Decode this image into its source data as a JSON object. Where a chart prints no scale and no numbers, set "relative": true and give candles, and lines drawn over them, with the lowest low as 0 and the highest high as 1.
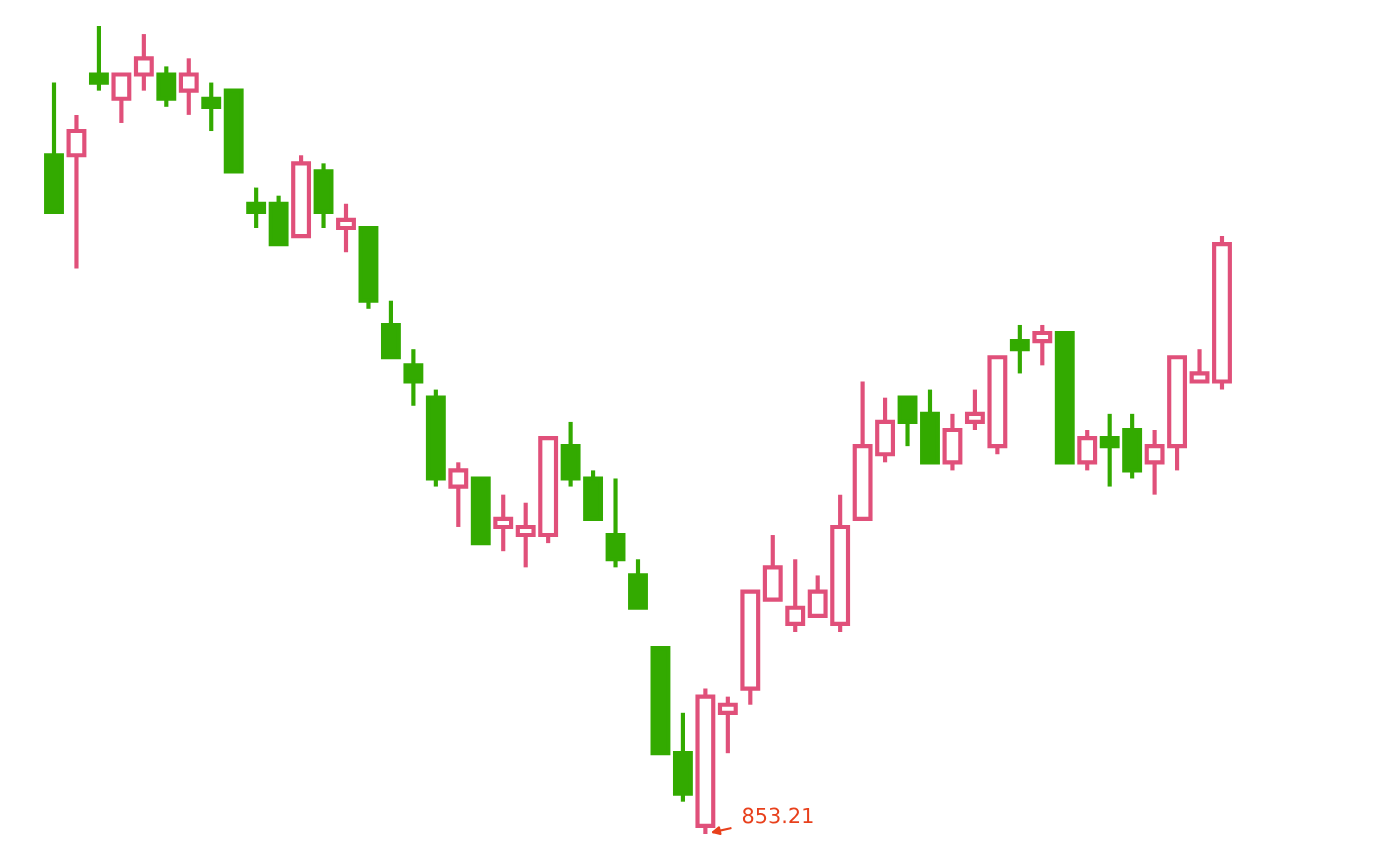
{
  "chart_data": {
    "type": "candlestick",
    "relative": true,
    "categories": [
      null,
      null,
      null,
      null,
      null,
      null,
      null,
      null,
      null,
      null,
      null,
      null,
      null,
      null,
      null,
      null,
      null,
      null,
      null,
      null,
      null,
      null,
      null,
      null,
      null,
      null,
      null,
      null,
      null,
      null,
      null,
      null,
      null,
      null,
      null,
      null,
      null,
      null,
      null,
      null,
      null,
      null,
      null,
      null,
      null,
      null,
      null,
      null,
      null,
      null,
      null,
      null,
      null
    ],
    "ohlc": [
      [
        0.84,
        0.93,
        0.77,
        0.77
      ],
      [
        0.84,
        0.89,
        0.7,
        0.87
      ],
      [
        0.94,
        1.0,
        0.92,
        0.93
      ],
      [
        0.91,
        0.94,
        0.88,
        0.94
      ],
      [
        0.94,
        0.99,
        0.92,
        0.96
      ],
      [
        0.94,
        0.95,
        0.9,
        0.91
      ],
      [
        0.92,
        0.96,
        0.89,
        0.94
      ],
      [
        0.91,
        0.93,
        0.87,
        0.9
      ],
      [
        0.92,
        0.92,
        0.82,
        0.82
      ],
      [
        0.78,
        0.8,
        0.75,
        0.77
      ],
      [
        0.78,
        0.79,
        0.73,
        0.73
      ],
      [
        0.74,
        0.84,
        0.74,
        0.83
      ],
      [
        0.82,
        0.83,
        0.75,
        0.77
      ],
      [
        0.75,
        0.78,
        0.72,
        0.76
      ],
      [
        0.75,
        0.75,
        0.65,
        0.66
      ],
      [
        0.63,
        0.66,
        0.59,
        0.59
      ],
      [
        0.58,
        0.6,
        0.53,
        0.56
      ],
      [
        0.54,
        0.55,
        0.43,
        0.44
      ],
      [
        0.43,
        0.46,
        0.38,
        0.45
      ],
      [
        0.44,
        0.44,
        0.36,
        0.36
      ],
      [
        0.38,
        0.42,
        0.35,
        0.39
      ],
      [
        0.37,
        0.41,
        0.33,
        0.38
      ],
      [
        0.37,
        0.49,
        0.36,
        0.49
      ],
      [
        0.48,
        0.51,
        0.43,
        0.44
      ],
      [
        0.44,
        0.45,
        0.39,
        0.39
      ],
      [
        0.37,
        0.44,
        0.33,
        0.34
      ],
      [
        0.32,
        0.34,
        0.28,
        0.28
      ],
      [
        0.23,
        0.23,
        0.1,
        0.1
      ],
      [
        0.1,
        0.15,
        0.04,
        0.05
      ],
      [
        0.01,
        0.18,
        0.0,
        0.17
      ],
      [
        0.15,
        0.17,
        0.1,
        0.16
      ],
      [
        0.18,
        0.3,
        0.16,
        0.3
      ],
      [
        0.29,
        0.37,
        0.29,
        0.33
      ],
      [
        0.26,
        0.34,
        0.25,
        0.28
      ],
      [
        0.27,
        0.32,
        0.27,
        0.3
      ],
      [
        0.26,
        0.42,
        0.25,
        0.38
      ],
      [
        0.39,
        0.56,
        0.39,
        0.48
      ],
      [
        0.47,
        0.54,
        0.46,
        0.51
      ],
      [
        0.54,
        0.54,
        0.48,
        0.51
      ],
      [
        0.52,
        0.55,
        0.46,
        0.46
      ],
      [
        0.46,
        0.52,
        0.45,
        0.5
      ],
      [
        0.51,
        0.55,
        0.5,
        0.52
      ],
      [
        0.48,
        0.59,
        0.47,
        0.59
      ],
      [
        0.61,
        0.63,
        0.57,
        0.6
      ],
      [
        0.61,
        0.63,
        0.58,
        0.62
      ],
      [
        0.62,
        0.62,
        0.46,
        0.46
      ],
      [
        0.46,
        0.5,
        0.45,
        0.49
      ],
      [
        0.49,
        0.52,
        0.43,
        0.48
      ],
      [
        0.5,
        0.52,
        0.44,
        0.45
      ],
      [
        0.46,
        0.5,
        0.42,
        0.48
      ],
      [
        0.48,
        0.59,
        0.45,
        0.59
      ],
      [
        0.56,
        0.6,
        0.56,
        0.57
      ],
      [
        0.56,
        0.74,
        0.55,
        0.73
      ]
    ],
    "colors": [
      "#33aa00",
      "#e0507a",
      "#33aa00",
      "#e0507a",
      "#e0507a",
      "#33aa00",
      "#e0507a",
      "#33aa00",
      "#33aa00",
      "#33aa00",
      "#33aa00",
      "#e0507a",
      "#33aa00",
      "#e0507a",
      "#33aa00",
      "#33aa00",
      "#33aa00",
      "#33aa00",
      "#e0507a",
      "#33aa00",
      "#e0507a",
      "#e0507a",
      "#e0507a",
      "#33aa00",
      "#33aa00",
      "#33aa00",
      "#33aa00",
      "#33aa00",
      "#33aa00",
      "#e0507a",
      "#e0507a",
      "#e0507a",
      "#e0507a",
      "#e0507a",
      "#e0507a",
      "#e0507a",
      "#e0507a",
      "#e0507a",
      "#33aa00",
      "#33aa00",
      "#e0507a",
      "#e0507a",
      "#e0507a",
      "#33aa00",
      "#e0507a",
      "#33aa00",
      "#e0507a",
      "#33aa00",
      "#33aa00",
      "#e0507a",
      "#e0507a",
      "#e0507a",
      "#e0507a"
    ],
    "annotations": [
      "853.21"
    ],
    "grid": false
  }
}
